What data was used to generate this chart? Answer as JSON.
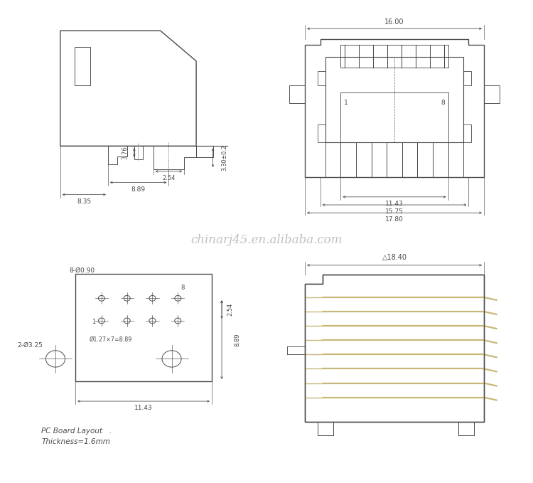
{
  "bg_color": "#ffffff",
  "line_color": "#4a4a4a",
  "dim_color": "#4a4a4a",
  "text_color": "#4a4a4a",
  "pin_color": "#c8a850",
  "watermark": "chinarj45.en.alibaba.com",
  "watermark_color": "#c0c0c0",
  "footer_line1": "PC Board Layout   .",
  "footer_line2": "Thickness=1.6mm",
  "figsize": [
    7.5,
    6.79
  ],
  "dpi": 100
}
